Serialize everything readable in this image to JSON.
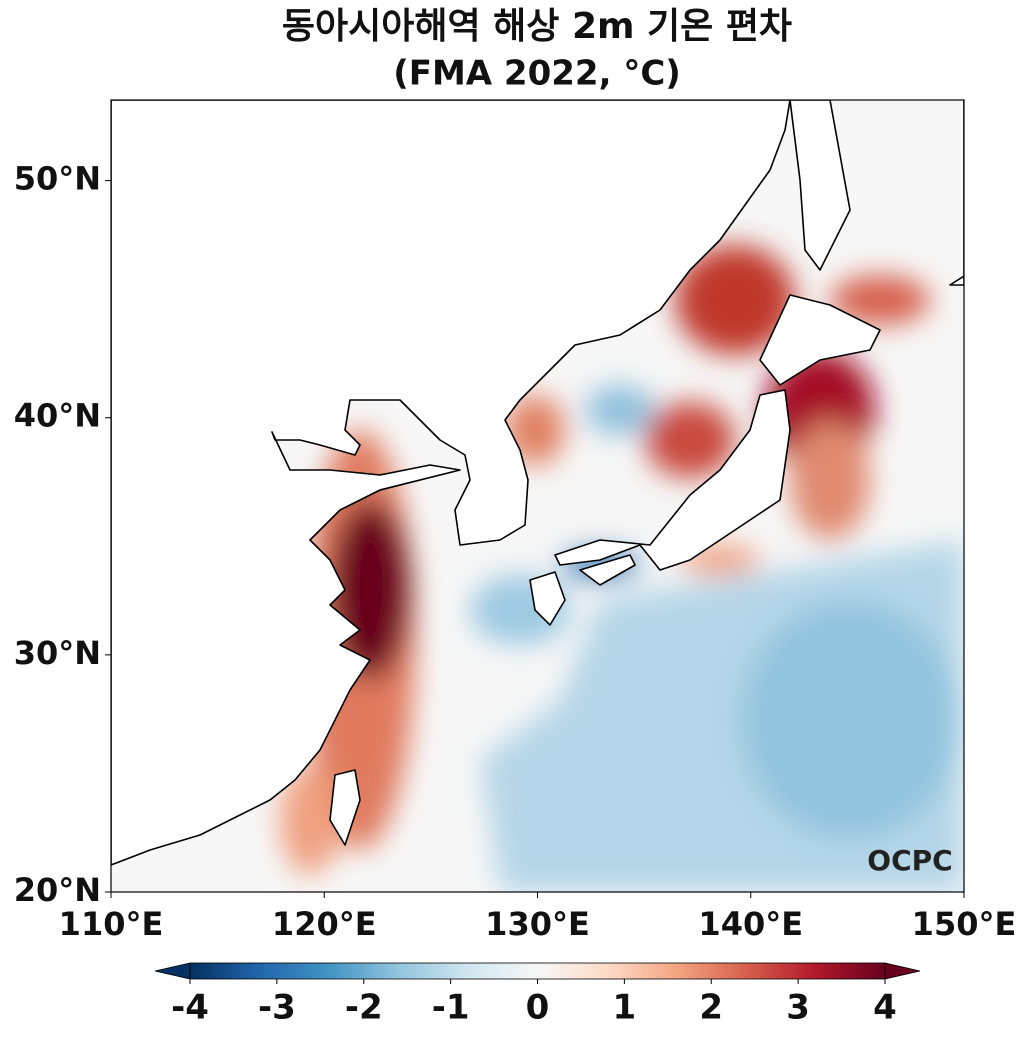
{
  "chart_data": {
    "type": "map",
    "title": "동아시아해역 해상 2m 기온 편차",
    "subtitle": "(FMA 2022, °C)",
    "xlim": [
      110,
      150
    ],
    "ylim": [
      20,
      53.4
    ],
    "xticks": [
      {
        "value": 110,
        "label": "110°E"
      },
      {
        "value": 120,
        "label": "120°E"
      },
      {
        "value": 130,
        "label": "130°E"
      },
      {
        "value": 140,
        "label": "140°E"
      },
      {
        "value": 150,
        "label": "150°E"
      }
    ],
    "yticks": [
      {
        "value": 20,
        "label": "20°N"
      },
      {
        "value": 30,
        "label": "30°N"
      },
      {
        "value": 40,
        "label": "40°N"
      },
      {
        "value": 50,
        "label": "50°N"
      }
    ],
    "colorbar": {
      "lim": [
        -4,
        4
      ],
      "ticks": [
        -4,
        -3,
        -2,
        -1,
        0,
        1,
        2,
        3,
        4
      ],
      "colors": [
        "#053061",
        "#2166ac",
        "#4393c3",
        "#92c5de",
        "#d1e5f0",
        "#f7f7f7",
        "#fddbc7",
        "#f4a582",
        "#d6604d",
        "#b2182b",
        "#67001f"
      ]
    },
    "watermark": "OCPC"
  }
}
